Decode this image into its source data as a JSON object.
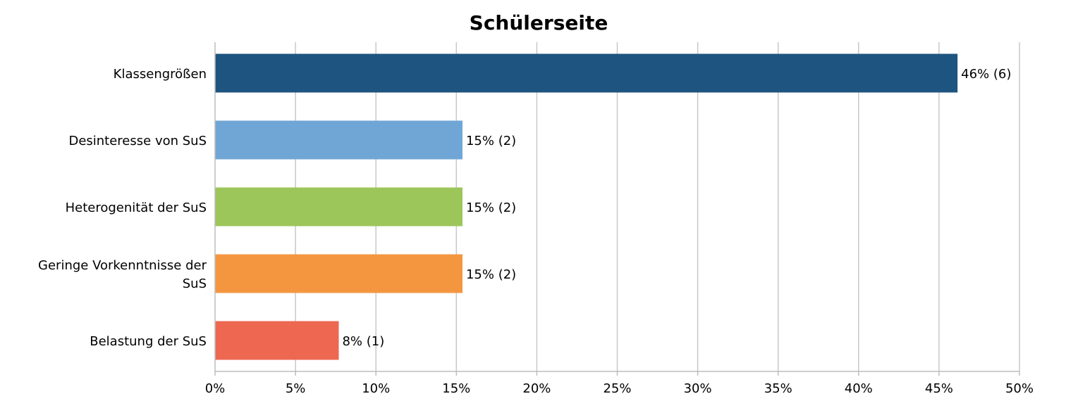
{
  "chart_data": {
    "type": "bar",
    "orientation": "horizontal",
    "title": "Schülerseite",
    "xlabel": "",
    "ylabel": "",
    "xlim": [
      0,
      50
    ],
    "x_ticks": [
      0,
      5,
      10,
      15,
      20,
      25,
      30,
      35,
      40,
      45,
      50
    ],
    "x_tick_labels": [
      "0%",
      "5%",
      "10%",
      "15%",
      "20%",
      "25%",
      "30%",
      "35%",
      "40%",
      "45%",
      "50%"
    ],
    "grid": true,
    "legend": "none",
    "categories": [
      [
        "Klassengrößen"
      ],
      [
        "Desinteresse von SuS"
      ],
      [
        "Heterogenität der SuS"
      ],
      [
        "Geringe Vorkenntnisse der",
        "SuS"
      ],
      [
        "Belastung der SuS"
      ]
    ],
    "values": [
      46.15,
      15.38,
      15.38,
      15.38,
      7.69
    ],
    "data_labels": [
      "46% (6)",
      "15% (2)",
      "15% (2)",
      "15% (2)",
      "8% (1)"
    ],
    "colors": [
      "#1e5480",
      "#70a6d5",
      "#9cc65a",
      "#f49640",
      "#ee6751"
    ]
  }
}
